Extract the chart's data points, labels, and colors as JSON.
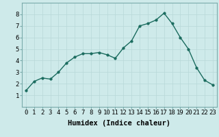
{
  "x": [
    0,
    1,
    2,
    3,
    4,
    5,
    6,
    7,
    8,
    9,
    10,
    11,
    12,
    13,
    14,
    15,
    16,
    17,
    18,
    19,
    20,
    21,
    22,
    23
  ],
  "y": [
    1.4,
    2.2,
    2.5,
    2.4,
    3.0,
    3.8,
    4.3,
    4.6,
    4.6,
    4.7,
    4.5,
    4.2,
    5.1,
    5.7,
    7.0,
    7.2,
    7.5,
    8.1,
    7.2,
    6.0,
    5.0,
    3.4,
    2.3,
    1.9
  ],
  "line_color": "#1a6b5e",
  "marker": "o",
  "markersize": 2.5,
  "linewidth": 1.0,
  "xlabel": "Humidex (Indice chaleur)",
  "xlim": [
    -0.5,
    23.5
  ],
  "ylim": [
    0,
    9
  ],
  "yticks": [
    1,
    2,
    3,
    4,
    5,
    6,
    7,
    8
  ],
  "xticks": [
    0,
    1,
    2,
    3,
    4,
    5,
    6,
    7,
    8,
    9,
    10,
    11,
    12,
    13,
    14,
    15,
    16,
    17,
    18,
    19,
    20,
    21,
    22,
    23
  ],
  "bg_color": "#ceeaea",
  "grid_color": "#b8d8d8",
  "xlabel_fontsize": 7.5,
  "tick_fontsize": 6.5,
  "spine_color": "#7aabab"
}
